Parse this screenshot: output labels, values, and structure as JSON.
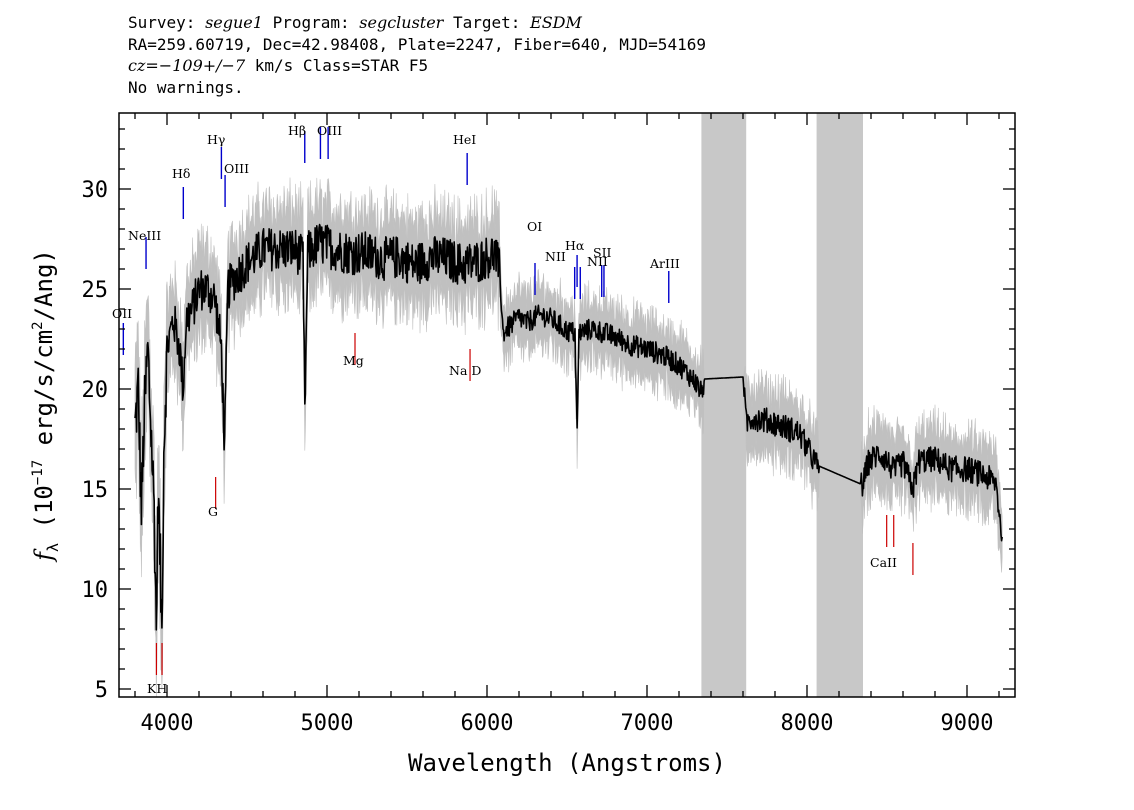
{
  "header": {
    "survey_label": "Survey: ",
    "survey": "segue1",
    "program_label": " Program: ",
    "program": "segcluster",
    "target_label": " Target: ",
    "target": "ESDM",
    "line2": "RA=259.60719, Dec=42.98408, Plate=2247, Fiber=640, MJD=54169",
    "cz": "cz=−109+/−7",
    "cz_rest": " km/s Class=STAR F5",
    "warnings": "No warnings."
  },
  "colors": {
    "flux": "#000000",
    "error": "#c0c0c0",
    "emission_line": "#0000cc",
    "absorption_line": "#cc0000",
    "masked_band": "#c8c8c8"
  },
  "chart_data": {
    "type": "line",
    "xlabel": "Wavelength (Angstroms)",
    "ylabel_prefix": "f",
    "ylabel_sub": "λ",
    "ylabel_main": " (10",
    "ylabel_exp": "−17",
    "ylabel_mid": " erg/s/cm",
    "ylabel_exp2": "2",
    "ylabel_end": "/Ang)",
    "xlim": [
      3700,
      9300
    ],
    "ylim": [
      4.6,
      33.8
    ],
    "xticks": [
      4000,
      5000,
      6000,
      7000,
      8000,
      9000
    ],
    "yticks": [
      5,
      10,
      15,
      20,
      25,
      30
    ],
    "grid": false,
    "masked_bands": [
      [
        7340,
        7620
      ],
      [
        8060,
        8350
      ]
    ],
    "series": [
      {
        "values": [
          [
            3800,
            18
          ],
          [
            3820,
            20
          ],
          [
            3840,
            14
          ],
          [
            3860,
            19
          ],
          [
            3880,
            22
          ],
          [
            3900,
            18
          ],
          [
            3920,
            14
          ],
          [
            3933,
            8
          ],
          [
            3945,
            15
          ],
          [
            3958,
            11
          ],
          [
            3968,
            7.8
          ],
          [
            3980,
            17
          ],
          [
            4000,
            22
          ],
          [
            4040,
            23.5
          ],
          [
            4080,
            22
          ],
          [
            4101,
            20
          ],
          [
            4120,
            23.5
          ],
          [
            4160,
            24
          ],
          [
            4200,
            25
          ],
          [
            4250,
            25
          ],
          [
            4300,
            24.5
          ],
          [
            4340,
            22
          ],
          [
            4360,
            17
          ],
          [
            4380,
            25
          ],
          [
            4420,
            25.5
          ],
          [
            4500,
            26.3
          ],
          [
            4600,
            27
          ],
          [
            4700,
            27
          ],
          [
            4800,
            27
          ],
          [
            4850,
            26.5
          ],
          [
            4861,
            18.8
          ],
          [
            4880,
            26.8
          ],
          [
            4950,
            27.3
          ],
          [
            5050,
            27
          ],
          [
            5150,
            26.8
          ],
          [
            5250,
            26.8
          ],
          [
            5350,
            26.5
          ],
          [
            5450,
            26.6
          ],
          [
            5550,
            26.2
          ],
          [
            5650,
            26.6
          ],
          [
            5750,
            26.5
          ],
          [
            5850,
            26.2
          ],
          [
            5950,
            26.4
          ],
          [
            6050,
            26.8
          ],
          [
            6080,
            25.8
          ],
          [
            6100,
            22.8
          ],
          [
            6150,
            23.2
          ],
          [
            6200,
            23.6
          ],
          [
            6250,
            23.3
          ],
          [
            6300,
            23.6
          ],
          [
            6350,
            23.7
          ],
          [
            6420,
            23.4
          ],
          [
            6500,
            22.9
          ],
          [
            6550,
            22.8
          ],
          [
            6563,
            17.7
          ],
          [
            6575,
            22.8
          ],
          [
            6650,
            23
          ],
          [
            6700,
            22.9
          ],
          [
            6800,
            22.6
          ],
          [
            6900,
            22.2
          ],
          [
            7000,
            22
          ],
          [
            7100,
            21.7
          ],
          [
            7200,
            21.2
          ],
          [
            7300,
            20.4
          ],
          [
            7340,
            19.8
          ],
          [
            7360,
            20.5
          ],
          [
            7600,
            20.6
          ],
          [
            7620,
            18.3
          ],
          [
            7660,
            18.6
          ],
          [
            7800,
            18.3
          ],
          [
            7950,
            17.8
          ],
          [
            8060,
            16.2
          ],
          [
            8350,
            15.2
          ],
          [
            8380,
            16.3
          ],
          [
            8450,
            16.8
          ],
          [
            8500,
            16.4
          ],
          [
            8542,
            15.9
          ],
          [
            8600,
            16.3
          ],
          [
            8662,
            15
          ],
          [
            8700,
            16.4
          ],
          [
            8800,
            16.5
          ],
          [
            8900,
            16
          ],
          [
            9000,
            16
          ],
          [
            9100,
            15.7
          ],
          [
            9180,
            15.3
          ],
          [
            9220,
            12.6
          ]
        ]
      }
    ],
    "emission_lines": [
      {
        "name": "OII",
        "wavelength": 3727,
        "flux": 22.5
      },
      {
        "name": "NeIII",
        "wavelength": 3869,
        "flux": 26.8
      },
      {
        "name": "Hδ",
        "wavelength": 4102,
        "flux": 29.3
      },
      {
        "name": "Hγ",
        "wavelength": 4340,
        "flux": 31.3
      },
      {
        "name": "OIII",
        "wavelength": 4363,
        "flux": 29.9
      },
      {
        "name": "Hβ",
        "wavelength": 4861,
        "flux": 32.1
      },
      {
        "name": "OIII",
        "wavelength": 4959,
        "flux": 32.3
      },
      {
        "name": "OIII",
        "wavelength": 5007,
        "flux": 32.3
      },
      {
        "name": "HeI",
        "wavelength": 5876,
        "flux": 31.0
      },
      {
        "name": "OI",
        "wavelength": 6300,
        "flux": 25.5
      },
      {
        "name": "NII",
        "wavelength": 6548,
        "flux": 25.3
      },
      {
        "name": "Hα",
        "wavelength": 6563,
        "flux": 25.9
      },
      {
        "name": "NII",
        "wavelength": 6583,
        "flux": 25.3
      },
      {
        "name": "SII",
        "wavelength": 6717,
        "flux": 25.4
      },
      {
        "name": "SII",
        "wavelength": 6731,
        "flux": 25.4
      },
      {
        "name": "ArIII",
        "wavelength": 7136,
        "flux": 25.1
      }
    ],
    "absorption_lines": [
      {
        "name": "K",
        "wavelength": 3934,
        "flux": 6.5
      },
      {
        "name": "H",
        "wavelength": 3969,
        "flux": 6.5
      },
      {
        "name": "G",
        "wavelength": 4304,
        "flux": 14.8
      },
      {
        "name": "Mg",
        "wavelength": 5175,
        "flux": 22.0
      },
      {
        "name": "Na D",
        "wavelength": 5894,
        "flux": 21.2
      },
      {
        "name": "CaII",
        "wavelength": 8498,
        "flux": 12.9
      },
      {
        "name": "CaII",
        "wavelength": 8542,
        "flux": 12.9
      },
      {
        "name": "CaII",
        "wavelength": 8662,
        "flux": 11.5
      }
    ],
    "labels": {
      "OII": "OII",
      "NeIII": "NeIII",
      "Hdelta": "Hδ",
      "Hgamma": "Hγ",
      "OIII_a": "OIII",
      "Hbeta": "Hβ",
      "OIII_b": "OIII",
      "HeI": "HeI",
      "OI": "OI",
      "NII_a": "NII",
      "Halpha": "Hα",
      "NII_b": "NII",
      "SII": "SII",
      "ArIII": "ArIII",
      "KH": "KH",
      "G": "G",
      "Mg": "Mg",
      "NaD": "Na D",
      "CaII": "CaII"
    }
  }
}
